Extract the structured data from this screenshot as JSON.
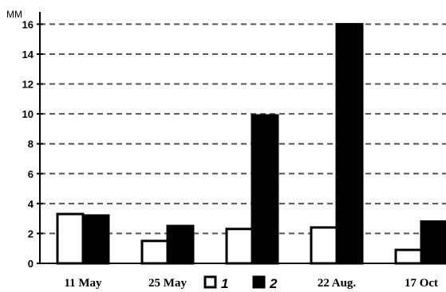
{
  "chart_data": {
    "type": "bar",
    "ylabel": "MM",
    "yticks": [
      "0",
      "2",
      "4",
      "6",
      "8",
      "10",
      "12",
      "14",
      "16"
    ],
    "ylim": [
      0,
      16.5
    ],
    "grid": true,
    "categories": [
      "11 May",
      "25 May",
      "",
      "22 Aug.",
      "17 Oct"
    ],
    "series": [
      {
        "name": "1",
        "color": "#ffffff",
        "values": [
          3.3,
          1.5,
          2.3,
          2.4,
          0.9
        ]
      },
      {
        "name": "2",
        "color": "#000000",
        "values": [
          3.2,
          2.5,
          9.9,
          16.0,
          2.8
        ]
      }
    ],
    "legend": {
      "position": "bottom-center"
    }
  }
}
